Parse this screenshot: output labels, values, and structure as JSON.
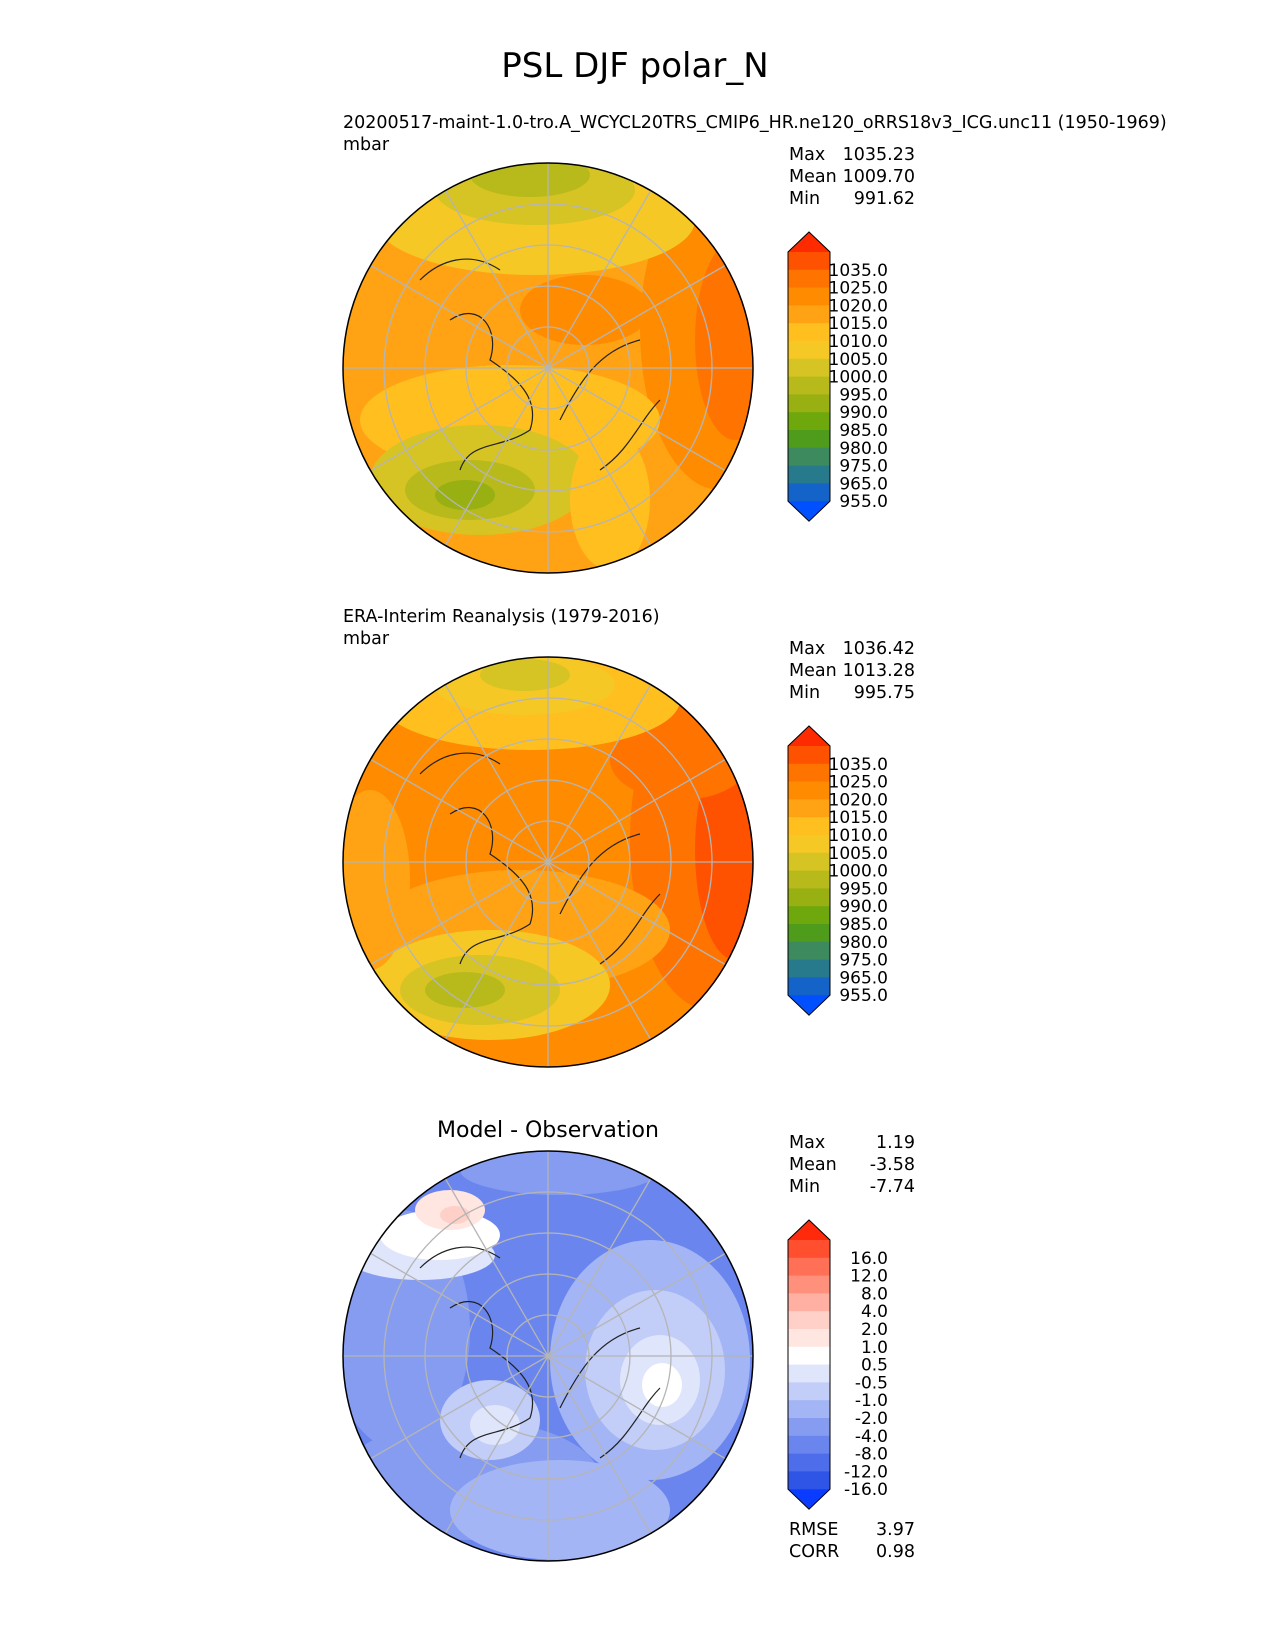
{
  "figure": {
    "title": "PSL DJF polar_N"
  },
  "chart_data": [
    {
      "type": "polar-contour-map",
      "projection": "north-polar-stereographic",
      "title": "20200517-maint-1.0-tro.A_WCYCL20TRS_CMIP6_HR.ne120_oRRS18v3_ICG.unc11 (1950-1969)",
      "units": "mbar",
      "stats": {
        "max": "1035.23",
        "mean": "1009.70",
        "min": "991.62"
      },
      "stat_labels": {
        "max": "Max",
        "mean": "Mean",
        "min": "Min"
      },
      "colorbar": {
        "tick_labels": [
          "1035.0",
          "1025.0",
          "1020.0",
          "1015.0",
          "1010.0",
          "1005.0",
          "1000.0",
          "995.0",
          "990.0",
          "985.0",
          "980.0",
          "975.0",
          "965.0",
          "955.0"
        ],
        "colors": [
          "#ff2b00",
          "#ff5200",
          "#ff7400",
          "#ff8c00",
          "#ffa314",
          "#ffbf1f",
          "#f5c825",
          "#d6c424",
          "#b8ba1c",
          "#98b012",
          "#6fa80c",
          "#4f9c1d",
          "#3d8a5e",
          "#267a8c",
          "#1463c9",
          "#0050ff"
        ],
        "extend": "both"
      },
      "field": {
        "range": [
          991.62,
          1035.23
        ],
        "mean": 1009.7
      }
    },
    {
      "type": "polar-contour-map",
      "projection": "north-polar-stereographic",
      "title": "ERA-Interim Reanalysis (1979-2016)",
      "units": "mbar",
      "stats": {
        "max": "1036.42",
        "mean": "1013.28",
        "min": "995.75"
      },
      "stat_labels": {
        "max": "Max",
        "mean": "Mean",
        "min": "Min"
      },
      "colorbar": {
        "tick_labels": [
          "1035.0",
          "1025.0",
          "1020.0",
          "1015.0",
          "1010.0",
          "1005.0",
          "1000.0",
          "995.0",
          "990.0",
          "985.0",
          "980.0",
          "975.0",
          "965.0",
          "955.0"
        ],
        "colors": [
          "#ff2b00",
          "#ff5200",
          "#ff7400",
          "#ff8c00",
          "#ffa314",
          "#ffbf1f",
          "#f5c825",
          "#d6c424",
          "#b8ba1c",
          "#98b012",
          "#6fa80c",
          "#4f9c1d",
          "#3d8a5e",
          "#267a8c",
          "#1463c9",
          "#0050ff"
        ],
        "extend": "both"
      },
      "field": {
        "range": [
          995.75,
          1036.42
        ],
        "mean": 1013.28
      }
    },
    {
      "type": "polar-contour-map",
      "projection": "north-polar-stereographic",
      "title": "Model - Observation",
      "units": "",
      "stats": {
        "max": "1.19",
        "mean": "-3.58",
        "min": "-7.74"
      },
      "stat_labels": {
        "max": "Max",
        "mean": "Mean",
        "min": "Min"
      },
      "extra_stats": [
        {
          "label": "RMSE",
          "value": "3.97"
        },
        {
          "label": "CORR",
          "value": "0.98"
        }
      ],
      "colorbar": {
        "tick_labels": [
          "16.0",
          "12.0",
          "8.0",
          "4.0",
          "2.0",
          "1.0",
          "0.5",
          "-0.5",
          "-1.0",
          "-2.0",
          "-4.0",
          "-8.0",
          "-12.0",
          "-16.0"
        ],
        "colors": [
          "#ff2a0c",
          "#ff4f2f",
          "#ff7057",
          "#ff917c",
          "#ffb0a2",
          "#ffd0c8",
          "#ffe6e1",
          "#ffffff",
          "#dfe5fb",
          "#c2cdf8",
          "#a4b5f5",
          "#869cf1",
          "#6a86ee",
          "#4d6dea",
          "#2f55e6",
          "#0a3cff"
        ],
        "extend": "both"
      },
      "field": {
        "range": [
          -7.74,
          1.19
        ],
        "mean": -3.58
      }
    }
  ]
}
